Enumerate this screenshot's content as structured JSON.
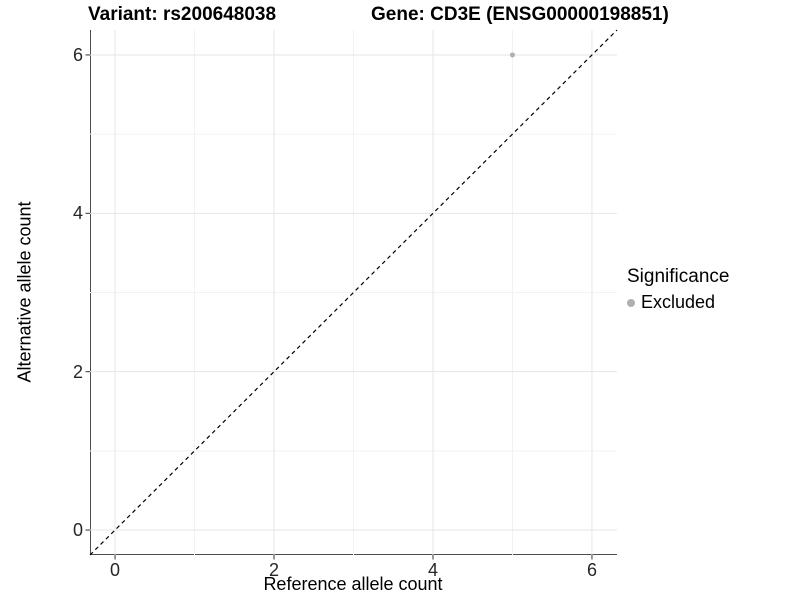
{
  "header": {
    "title_left": "Variant: rs200648038",
    "title_right": "Gene: CD3E (ENSG00000198851)"
  },
  "chart_data": {
    "type": "scatter",
    "xlabel": "Reference allele count",
    "ylabel": "Alternative allele count",
    "xlim": [
      -0.315,
      6.315
    ],
    "ylim": [
      -0.315,
      6.315
    ],
    "x_breaks": [
      0,
      2,
      4,
      6
    ],
    "y_breaks": [
      0,
      2,
      4,
      6
    ],
    "x_minor_breaks": [
      1,
      3,
      5
    ],
    "y_minor_breaks": [
      1,
      3,
      5
    ],
    "grid": "major+minor",
    "points": [
      {
        "x": 5,
        "y": 6,
        "significance": "Excluded"
      }
    ],
    "identity_line": {
      "slope": 1,
      "intercept": 0,
      "style": "dashed"
    },
    "legend": {
      "title": "Significance",
      "position": "right",
      "items": [
        {
          "label": "Excluded",
          "color": "#b0b0b0",
          "marker": "circle"
        }
      ]
    }
  },
  "colors": {
    "background": "#ffffff",
    "grid_major": "#e6e6e6",
    "grid_minor": "#f2f2f2",
    "axis_line": "#4d4d4d",
    "tick_mark": "#333333",
    "tick_label": "#262626",
    "title": "#000000",
    "point": "#b0b0b0",
    "identity_line": "#000000"
  }
}
